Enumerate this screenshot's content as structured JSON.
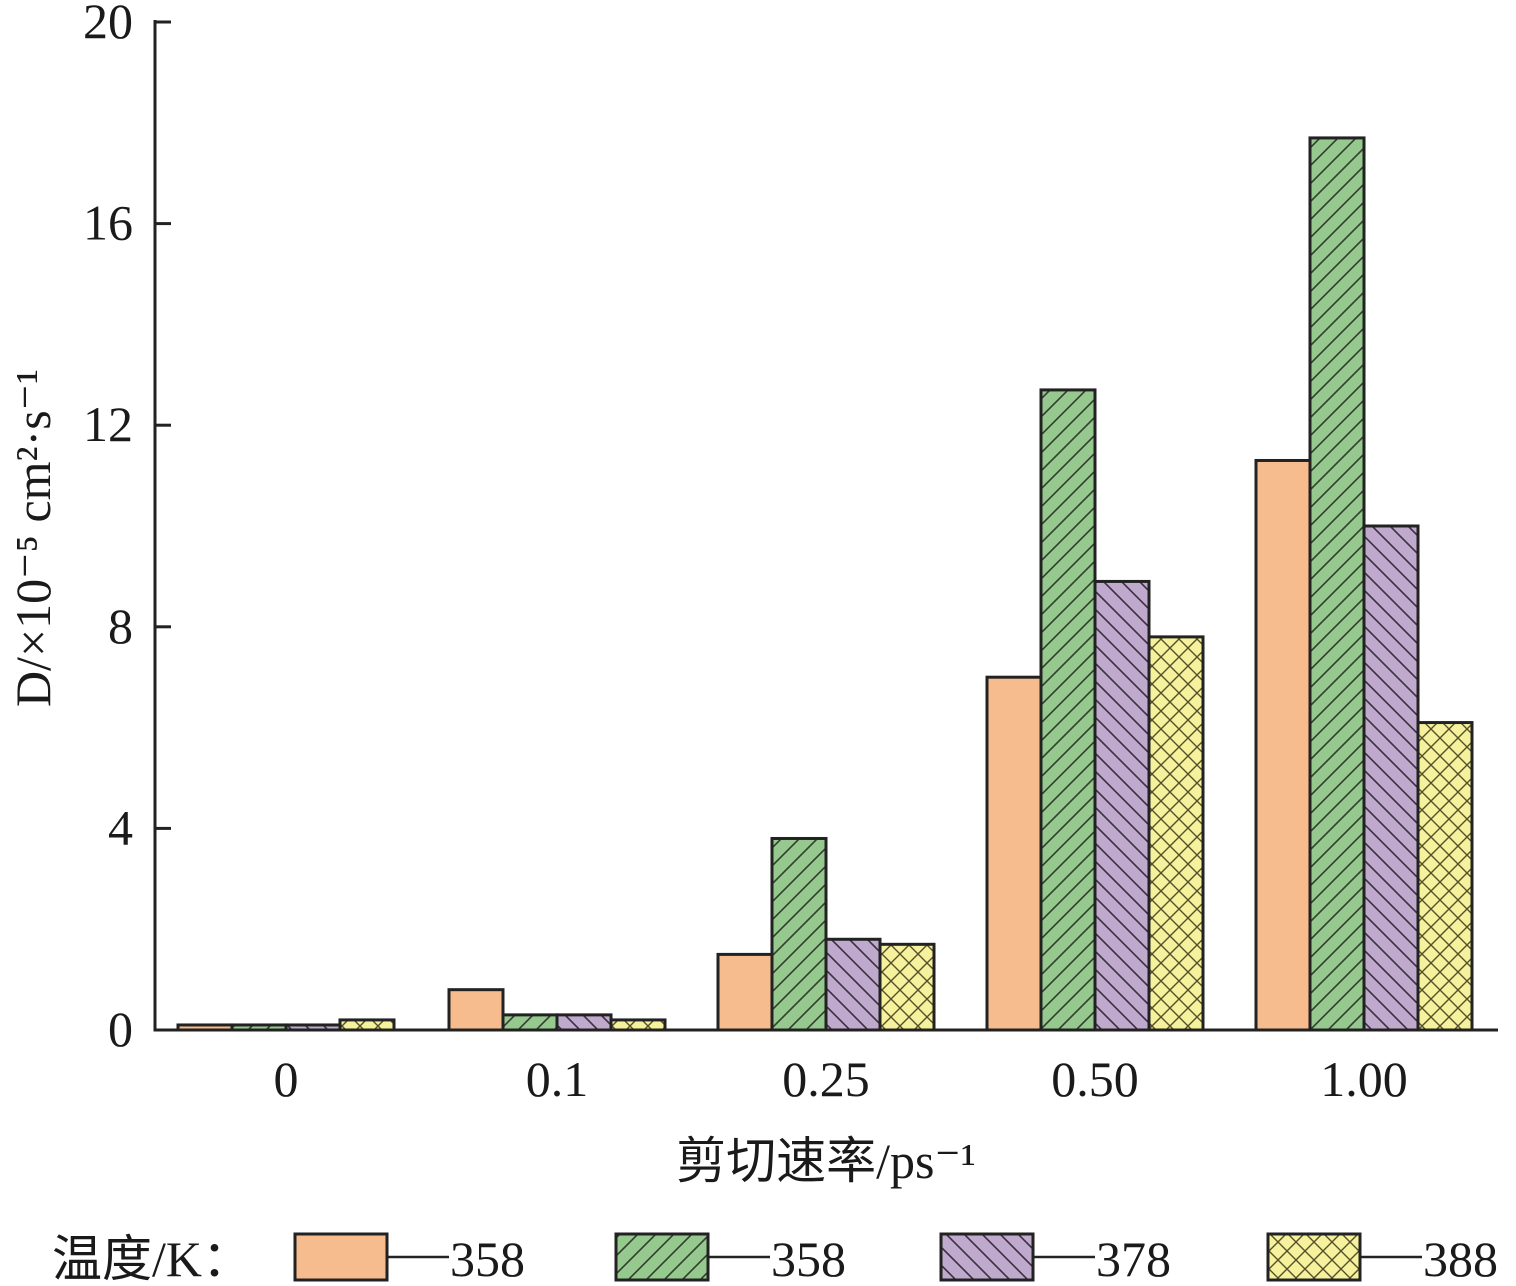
{
  "chart_data": {
    "type": "bar",
    "categories": [
      "0",
      "0.1",
      "0.25",
      "0.50",
      "1.00"
    ],
    "series": [
      {
        "name": "358",
        "values": [
          0.1,
          0.8,
          1.5,
          7.0,
          11.3
        ],
        "color": "#f7bc8d",
        "pattern": "none"
      },
      {
        "name": "358",
        "values": [
          0.1,
          0.3,
          3.8,
          12.7,
          17.7
        ],
        "color": "#96c98e",
        "pattern": "diagonal-up"
      },
      {
        "name": "378",
        "values": [
          0.1,
          0.3,
          1.8,
          8.9,
          10.0
        ],
        "color": "#bfa9cc",
        "pattern": "diagonal-down"
      },
      {
        "name": "388",
        "values": [
          0.2,
          0.2,
          1.7,
          7.8,
          6.1
        ],
        "color": "#f5f19c",
        "pattern": "crosshatch"
      }
    ],
    "yticks": [
      "0",
      "4",
      "8",
      "12",
      "16",
      "20"
    ],
    "ylim": [
      0,
      20
    ],
    "xlabel": "剪切速率/ps⁻¹",
    "ylabel": "D/×10⁻⁵ cm²·s⁻¹",
    "legend": {
      "title": "温度/K：",
      "placement": "bottom"
    }
  }
}
